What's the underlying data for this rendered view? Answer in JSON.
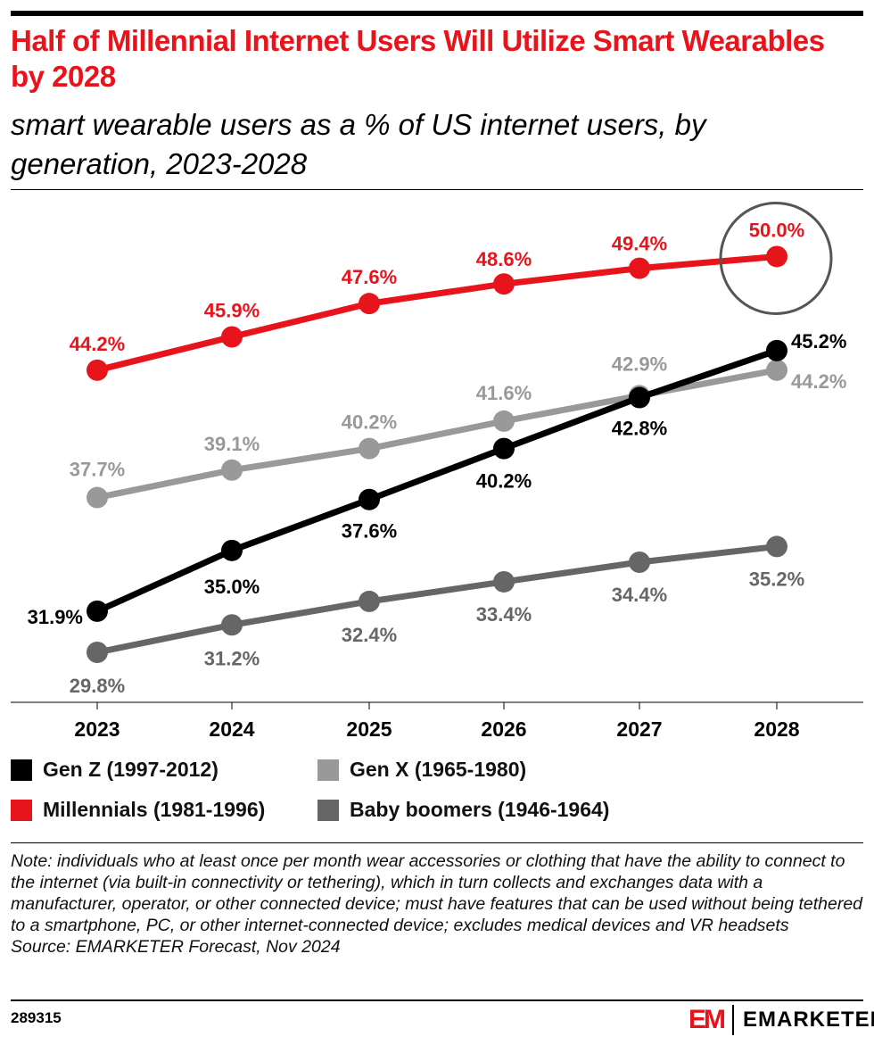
{
  "title": "Half of Millennial Internet Users Will Utilize Smart Wearables by 2028",
  "subtitle": "smart wearable users as a % of US internet users, by generation, 2023-2028",
  "chart_data": {
    "type": "line",
    "categories": [
      "2023",
      "2024",
      "2025",
      "2026",
      "2027",
      "2028"
    ],
    "ylim": [
      27.25,
      53.3
    ],
    "grid": false,
    "legend_placement": "bottom",
    "series": [
      {
        "name": "Gen Z (1997-2012)",
        "color": "#000000",
        "values": [
          31.9,
          35.0,
          37.6,
          40.2,
          42.8,
          45.2
        ],
        "labels": [
          "31.9%",
          "35.0%",
          "37.6%",
          "40.2%",
          "42.8%",
          "45.2%"
        ]
      },
      {
        "name": "Millennials (1981-1996)",
        "color": "#e8141c",
        "values": [
          44.2,
          45.9,
          47.6,
          48.6,
          49.4,
          50.0
        ],
        "labels": [
          "44.2%",
          "45.9%",
          "47.6%",
          "48.6%",
          "49.4%",
          "50.0%"
        ]
      },
      {
        "name": "Gen X (1965-1980)",
        "color": "#999999",
        "values": [
          37.7,
          39.1,
          40.2,
          41.6,
          42.9,
          44.2
        ],
        "labels": [
          "37.7%",
          "39.1%",
          "40.2%",
          "41.6%",
          "42.9%",
          "44.2%"
        ]
      },
      {
        "name": "Baby boomers (1946-1964)",
        "color": "#666666",
        "values": [
          29.8,
          31.2,
          32.4,
          33.4,
          34.4,
          35.2
        ],
        "labels": [
          "29.8%",
          "31.2%",
          "32.4%",
          "33.4%",
          "34.4%",
          "35.2%"
        ]
      }
    ],
    "annotation": "circle highlighting Millennials 2028 value"
  },
  "note": "Note: individuals who at least once per month wear accessories or clothing that have the ability to connect to the internet (via built-in connectivity or tethering), which in turn collects and exchanges data with a manufacturer, operator, or other connected device; must have features that can be used without being tethered to a smartphone, PC, or other internet-connected device; excludes medical devices and VR headsets",
  "source": "Source: EMARKETER Forecast, Nov 2024",
  "chart_id": "289315",
  "brand": {
    "mark": "EM",
    "name": "EMARKETER"
  }
}
